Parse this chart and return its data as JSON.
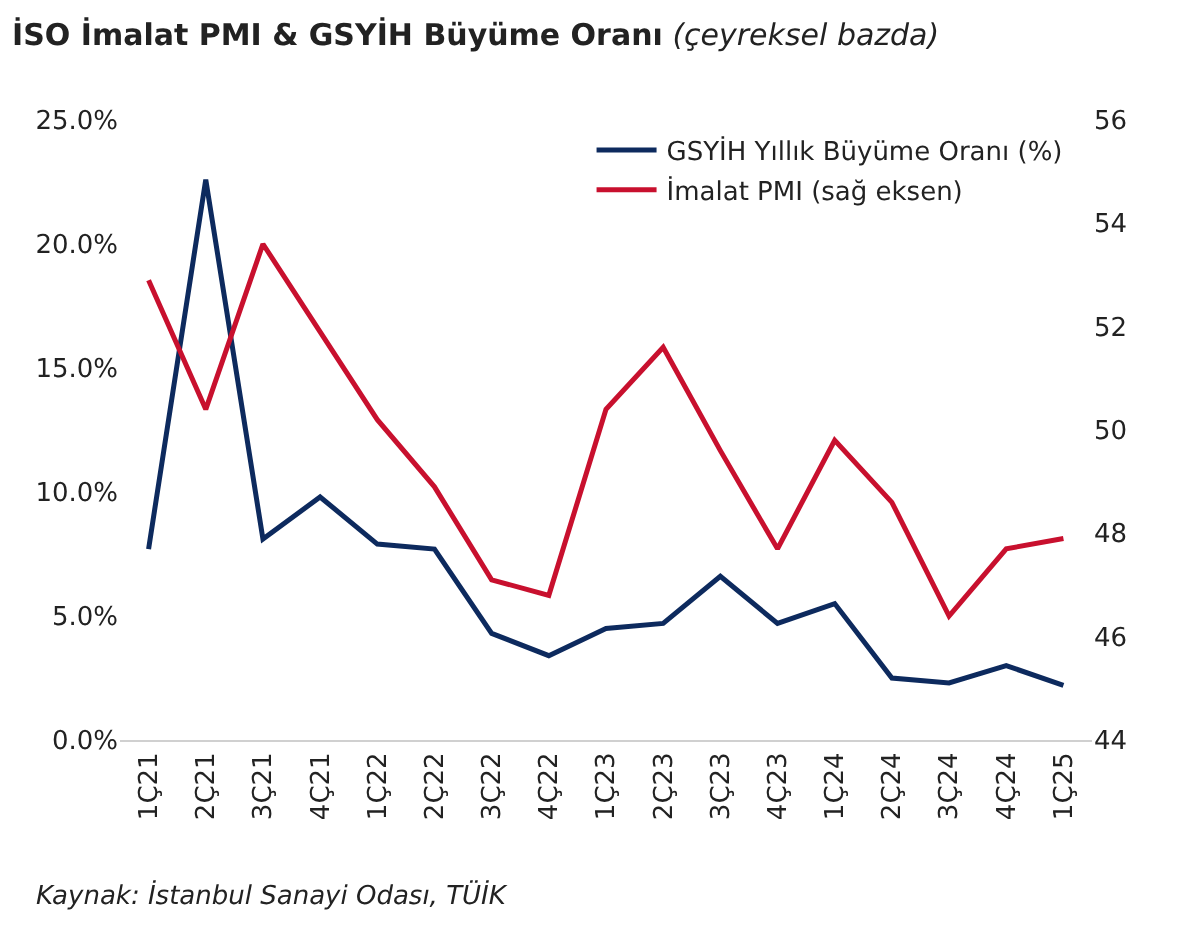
{
  "chart_data": {
    "type": "line",
    "title": "İSO İmalat PMI & GSYİH Büyüme Oranı",
    "subtitle": "(çeyreksel bazda)",
    "categories": [
      "1Ç21",
      "2Ç21",
      "3Ç21",
      "4Ç21",
      "1Ç22",
      "2Ç22",
      "3Ç22",
      "4Ç22",
      "1Ç23",
      "2Ç23",
      "3Ç23",
      "4Ç23",
      "1Ç24",
      "2Ç24",
      "3Ç24",
      "4Ç24",
      "1Ç25"
    ],
    "series": [
      {
        "name": "GSYİH Yıllık Büyüme Oranı (%)",
        "color": "#0d2a5e",
        "values": [
          7.7,
          22.6,
          8.1,
          9.8,
          7.9,
          7.7,
          4.3,
          3.4,
          4.5,
          4.7,
          6.6,
          4.7,
          5.5,
          2.5,
          2.3,
          3.0,
          2.2
        ]
      },
      {
        "name": "İmalat PMI (sağ eksen)",
        "color": "#c8102e",
        "axis": "y2",
        "values": [
          52.9,
          50.4,
          53.6,
          51.9,
          50.2,
          48.9,
          47.1,
          46.8,
          50.4,
          51.6,
          49.6,
          47.7,
          49.8,
          48.6,
          46.4,
          47.7,
          47.9
        ]
      }
    ],
    "ylim": [
      0,
      25
    ],
    "yticks": [
      {
        "value": 0,
        "label": "0.0%"
      },
      {
        "value": 5,
        "label": "5.0%"
      },
      {
        "value": 10,
        "label": "10.0%"
      },
      {
        "value": 15,
        "label": "15.0%"
      },
      {
        "value": 20,
        "label": "20.0%"
      },
      {
        "value": 25,
        "label": "25.0%"
      }
    ],
    "y2lim": [
      44,
      56
    ],
    "y2ticks": [
      44,
      46,
      48,
      50,
      52,
      54,
      56
    ],
    "annotations": [
      "Kaynak: İstanbul Sanayi Odası, TÜİK"
    ],
    "legend": "top right",
    "marker": "none",
    "line_style": "solid"
  }
}
